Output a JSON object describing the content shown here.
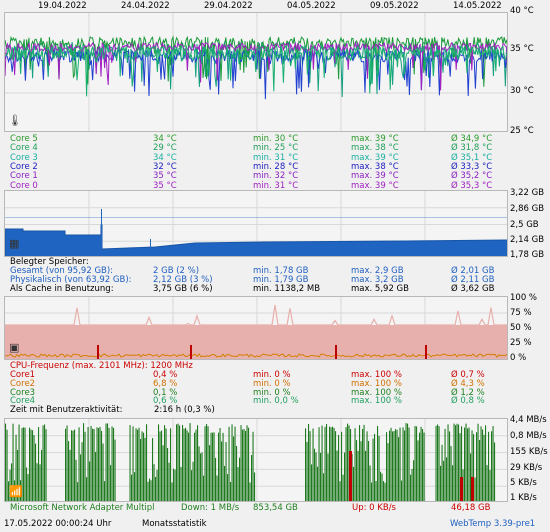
{
  "top_dates": [
    "19.04.2022",
    "24.04.2022",
    "29.04.2022",
    "04.05.2022",
    "09.05.2022",
    "14.05.2022"
  ],
  "temp_axis": [
    "40 °C",
    "35 °C",
    "30 °C",
    "25 °C"
  ],
  "temp_rows": [
    {
      "label": "Core 5",
      "cur": "34 °C",
      "min": "min. 30 °C",
      "max": "max. 39 °C",
      "avg": "Ø 34,9 °C",
      "cls": "c-core5"
    },
    {
      "label": "Core 4",
      "cur": "29 °C",
      "min": "min. 25 °C",
      "max": "max. 38 °C",
      "avg": "Ø 31,8 °C",
      "cls": "c-core4"
    },
    {
      "label": "Core 3",
      "cur": "34 °C",
      "min": "min. 31 °C",
      "max": "max. 39 °C",
      "avg": "Ø 35,1 °C",
      "cls": "c-core3"
    },
    {
      "label": "Core 2",
      "cur": "32 °C",
      "min": "min. 28 °C",
      "max": "max. 38 °C",
      "avg": "Ø 33,3 °C",
      "cls": "c-core2"
    },
    {
      "label": "Core 1",
      "cur": "35 °C",
      "min": "min. 32 °C",
      "max": "max. 39 °C",
      "avg": "Ø 35,2 °C",
      "cls": "c-core1"
    },
    {
      "label": "Core 0",
      "cur": "35 °C",
      "min": "min. 31 °C",
      "max": "max. 39 °C",
      "avg": "Ø 35,3 °C",
      "cls": "c-core0"
    }
  ],
  "mem_axis": [
    "3,22 GB",
    "2,86 GB",
    "2,5 GB",
    "2,14 GB",
    "1,78 GB"
  ],
  "mem_title": "Belegter Speicher:",
  "mem_rows": [
    {
      "label": "Gesamt (von 95,92 GB):",
      "cur": "2 GB (2 %)",
      "min": "min. 1,78 GB",
      "max": "max. 2,9 GB",
      "avg": "Ø 2,01 GB",
      "cls": "c-blue"
    },
    {
      "label": "Physikalisch (von 63,92 GB):",
      "cur": "2,12 GB (3 %)",
      "min": "min. 1,79 GB",
      "max": "max. 3,2 GB",
      "avg": "Ø 2,11 GB",
      "cls": "c-blue"
    },
    {
      "label": "Als Cache in Benutzung:",
      "cur": "3,75 GB (6 %)",
      "min": "min. 1138,2 MB",
      "max": "max. 5,92 GB",
      "avg": "Ø 3,62 GB",
      "cls": "c-black"
    }
  ],
  "cpu_axis": [
    "100 %",
    "75 %",
    "50 %",
    "25 %",
    "0 %"
  ],
  "cpu_title": "CPU-Frequenz (max. 2101 MHz): 1200 MHz",
  "cpu_rows": [
    {
      "label": "Core1",
      "cur": "0,4 %",
      "min": "min. 0 %",
      "max": "max. 100 %",
      "avg": "Ø 0,7 %",
      "cls": "c-red"
    },
    {
      "label": "Core2",
      "cur": "6,8 %",
      "min": "min. 0 %",
      "max": "max. 100 %",
      "avg": "Ø 4,3 %",
      "cls": "c-orange"
    },
    {
      "label": "Core3",
      "cur": "0,1 %",
      "min": "min. 0 %",
      "max": "max. 100 %",
      "avg": "Ø 1,2 %",
      "cls": "c-green"
    },
    {
      "label": "Core4",
      "cur": "0,6 %",
      "min": "min. 0,0 %",
      "max": "max. 100 %",
      "avg": "Ø 0,8 %",
      "cls": "c-lgreen"
    }
  ],
  "cpu_activity": {
    "label": "Zeit mit Benutzeraktivität:",
    "value": "2:16 h (0,3 %)"
  },
  "net_axis": [
    "4,4 MB/s",
    "0,8 MB/s",
    "155 KB/s",
    "29 KB/s",
    "5 KB/s",
    "1 KB/s"
  ],
  "net_row": {
    "label": "Microsoft Network Adapter Multipl",
    "down": "Down: 1 MB/s",
    "down_total": "853,54 GB",
    "up": "Up: 0 KB/s",
    "up_total": "46,18 GB"
  },
  "footer": {
    "datetime": "17.05.2022 00:00:24 Uhr",
    "mode": "Monatsstatistik",
    "version": "WebTemp 3.39-pre1"
  }
}
